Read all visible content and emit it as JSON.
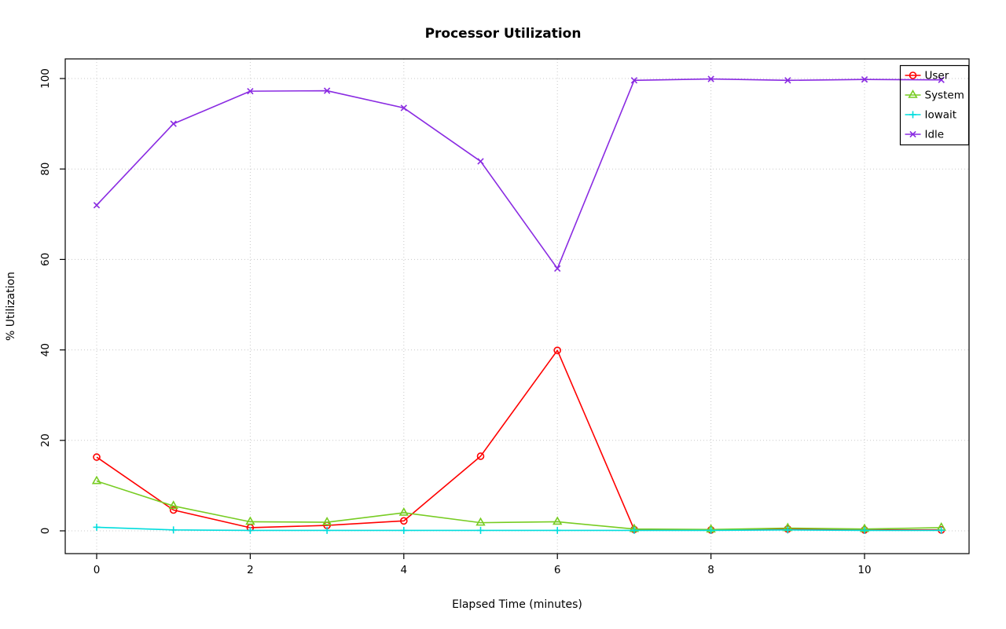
{
  "chart_data": {
    "type": "line",
    "title": "Processor Utilization",
    "xlabel": "Elapsed Time (minutes)",
    "ylabel": "% Utilization",
    "x": [
      0,
      1,
      2,
      3,
      4,
      5,
      6,
      7,
      8,
      9,
      10,
      11
    ],
    "xticks": [
      0,
      2,
      4,
      6,
      8,
      10
    ],
    "yticks": [
      0,
      20,
      40,
      60,
      80,
      100
    ],
    "xlim": [
      0,
      11
    ],
    "ylim": [
      0,
      100
    ],
    "grid": "dotted",
    "grid_color": "#c8c8c8",
    "legend_position": "top-right",
    "legend_labels": [
      "User",
      "System",
      "Iowait",
      "Idle"
    ],
    "series": [
      {
        "name": "User",
        "color": "#ff0000",
        "marker": "circle",
        "values": [
          16.3,
          4.6,
          0.7,
          1.2,
          2.2,
          16.5,
          39.9,
          0.3,
          0.2,
          0.4,
          0.2,
          0.2
        ]
      },
      {
        "name": "System",
        "color": "#77cc22",
        "marker": "triangle",
        "values": [
          11.0,
          5.5,
          2.0,
          1.9,
          4.0,
          1.8,
          2.0,
          0.4,
          0.3,
          0.6,
          0.4,
          0.7
        ]
      },
      {
        "name": "Iowait",
        "color": "#00dddd",
        "marker": "plus",
        "values": [
          0.8,
          0.2,
          0.1,
          0.1,
          0.1,
          0.1,
          0.1,
          0.1,
          0.1,
          0.2,
          0.1,
          0.1
        ]
      },
      {
        "name": "Idle",
        "color": "#8a2be2",
        "marker": "x",
        "values": [
          72.0,
          90.0,
          97.2,
          97.3,
          93.5,
          81.7,
          58.0,
          99.6,
          99.9,
          99.6,
          99.8,
          99.7
        ]
      }
    ]
  }
}
